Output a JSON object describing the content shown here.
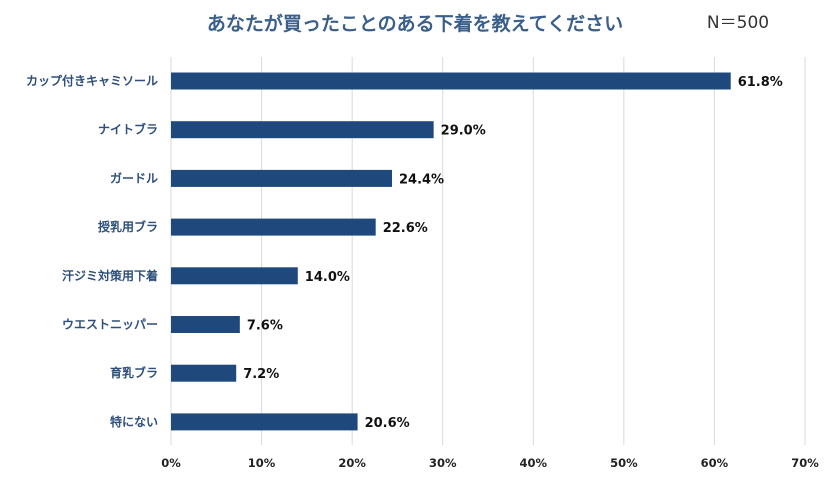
{
  "chart_data": {
    "type": "bar",
    "orientation": "horizontal",
    "title": "あなたが買ったことのある下着を教えてください",
    "note": "N＝500",
    "categories": [
      "カップ付きキャミソール",
      "ナイトブラ",
      "ガードル",
      "授乳用ブラ",
      "汗ジミ対策用下着",
      "ウエストニッパー",
      "育乳ブラ",
      "特にない"
    ],
    "values": [
      61.8,
      29.0,
      24.4,
      22.6,
      14.0,
      7.6,
      7.2,
      20.6
    ],
    "value_labels": [
      "61.8%",
      "29.0%",
      "24.4%",
      "22.6%",
      "14.0%",
      "7.6%",
      "7.2%",
      "20.6%"
    ],
    "xlim": [
      0,
      70
    ],
    "x_ticks": [
      "0%",
      "10%",
      "20%",
      "30%",
      "40%",
      "50%",
      "60%",
      "70%"
    ],
    "grid": true,
    "legend": "none",
    "colors": {
      "bar": "#1f497d",
      "title": "#3a5f8a",
      "category": "#2e4f7a",
      "grid": "#d9d9d9"
    }
  }
}
